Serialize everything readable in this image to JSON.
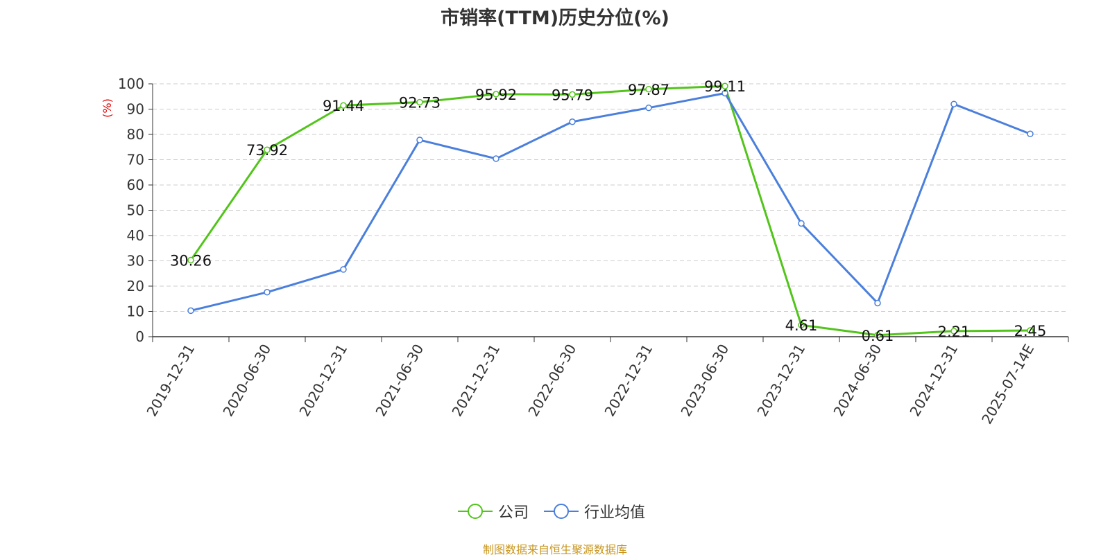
{
  "chart_data": {
    "type": "line",
    "title": "市销率(TTM)历史分位(%)",
    "ylabel": "(%)",
    "xlabel": "",
    "ylim": [
      0,
      100
    ],
    "yticks": [
      0,
      10,
      20,
      30,
      40,
      50,
      60,
      70,
      80,
      90,
      100
    ],
    "categories": [
      "2019-12-31",
      "2020-06-30",
      "2020-12-31",
      "2021-06-30",
      "2021-12-31",
      "2022-06-30",
      "2022-12-31",
      "2023-06-30",
      "2023-12-31",
      "2024-06-30",
      "2024-12-31",
      "2025-07-14E"
    ],
    "series": [
      {
        "name": "公司",
        "color": "#52c41a",
        "values": [
          30.26,
          73.92,
          91.44,
          92.73,
          95.92,
          95.79,
          97.87,
          99.11,
          4.61,
          0.61,
          2.21,
          2.45
        ],
        "labels": [
          "30.26",
          "73.92",
          "91.44",
          "92.73",
          "95.92",
          "95.79",
          "97.87",
          "99.11",
          "4.61",
          "0.61",
          "2.21",
          "2.45"
        ]
      },
      {
        "name": "行业均值",
        "color": "#4a7fdc",
        "values": [
          10.3,
          17.6,
          26.6,
          77.8,
          70.4,
          85.0,
          90.5,
          96.3,
          44.8,
          13.3,
          92.0,
          80.2
        ]
      }
    ],
    "grid": true,
    "legend": "bottom-center",
    "source": "制图数据来自恒生聚源数据库"
  }
}
